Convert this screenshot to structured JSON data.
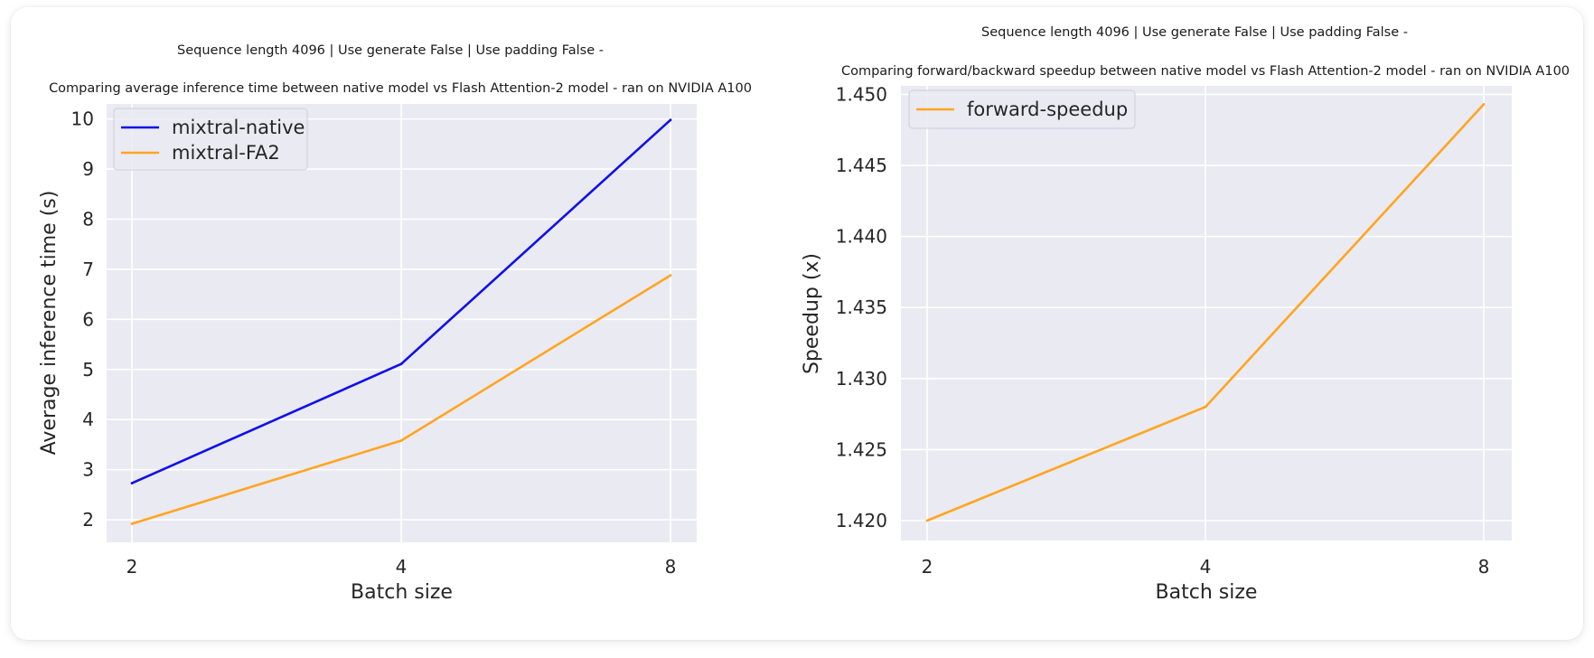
{
  "chart_data": [
    {
      "type": "line",
      "title_line1": "Sequence length 4096 | Use generate False | Use padding False -",
      "title_line2": "Comparing average inference time between native model vs Flash Attention-2 model - ran on NVIDIA A100",
      "xlabel": "Batch size",
      "ylabel": "Average inference time (s)",
      "categories": [
        "2",
        "4",
        "8"
      ],
      "yticks": [
        "2",
        "3",
        "4",
        "5",
        "6",
        "7",
        "8",
        "9",
        "10"
      ],
      "ylim": [
        1.55,
        10.3
      ],
      "grid": true,
      "legend_position": "top-left",
      "series": [
        {
          "name": "mixtral-native",
          "color": "#1010e8",
          "values": [
            2.73,
            5.11,
            9.98
          ]
        },
        {
          "name": "mixtral-FA2",
          "color": "#ffa520",
          "values": [
            1.92,
            3.58,
            6.88
          ]
        }
      ]
    },
    {
      "type": "line",
      "title_line1": "Sequence length 4096 | Use generate False | Use padding False -",
      "title_line2": "Comparing forward/backward speedup between native model vs Flash Attention-2 model - ran on NVIDIA A100",
      "xlabel": "Batch size",
      "ylabel": "Speedup (x)",
      "categories": [
        "2",
        "4",
        "8"
      ],
      "yticks": [
        "1.420",
        "1.425",
        "1.430",
        "1.435",
        "1.440",
        "1.445",
        "1.450"
      ],
      "ylim": [
        1.4186,
        1.4506
      ],
      "grid": true,
      "legend_position": "top-left",
      "series": [
        {
          "name": "forward-speedup",
          "color": "#ffa520",
          "values": [
            1.42,
            1.428,
            1.4493
          ]
        }
      ]
    }
  ]
}
